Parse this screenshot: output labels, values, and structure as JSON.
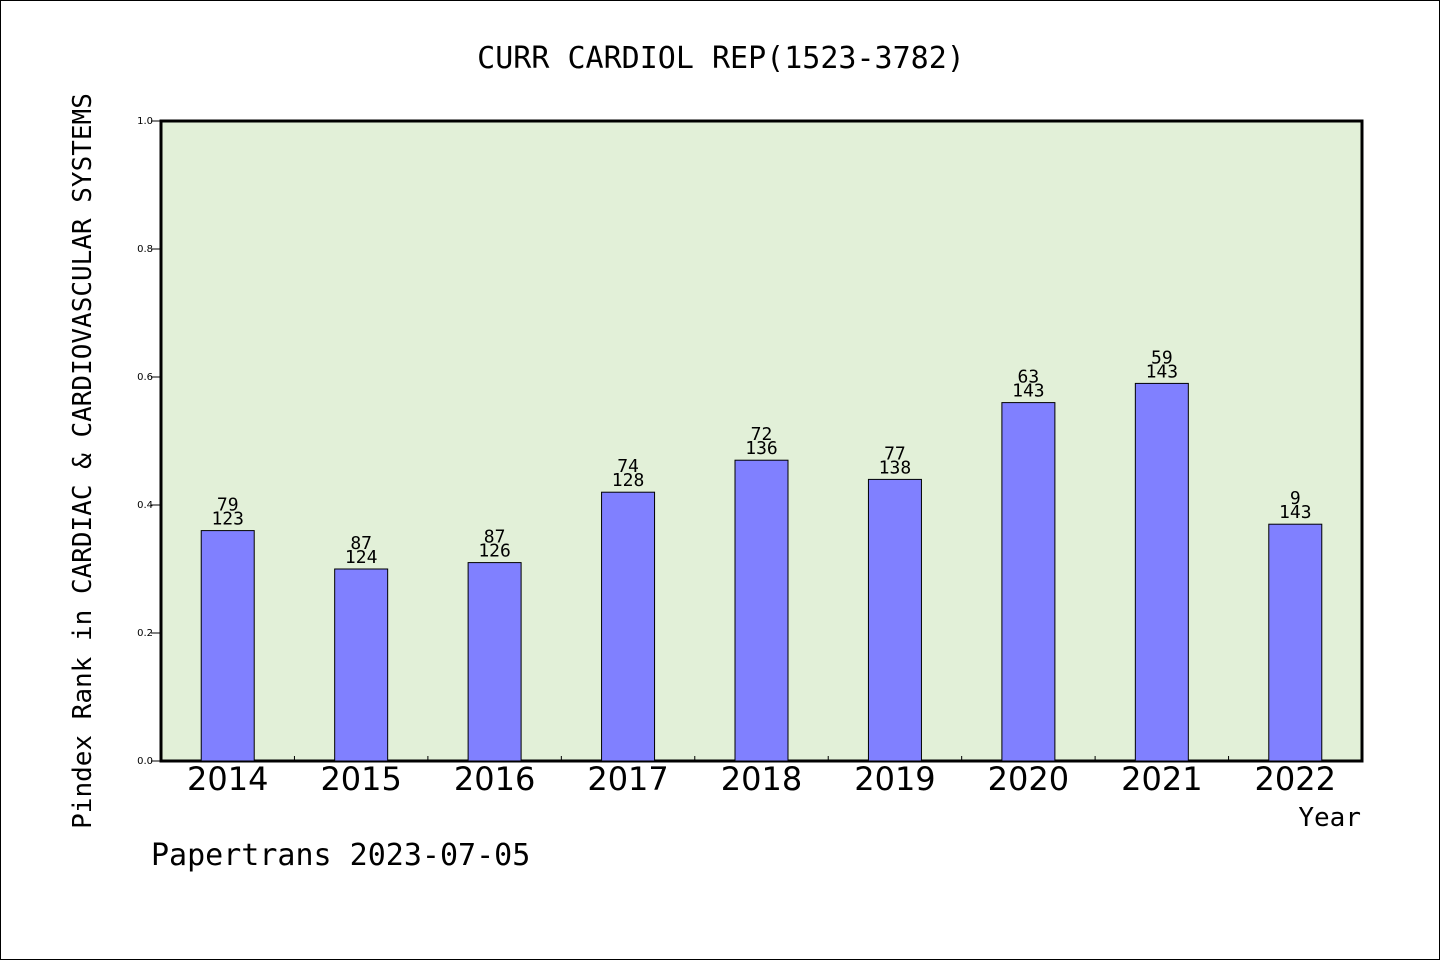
{
  "chart_data": {
    "type": "bar",
    "title": "CURR CARDIOL REP(1523-3782)",
    "xlabel": "Year",
    "ylabel": "Pindex Rank in CARDIAC & CARDIOVASCULAR SYSTEMS",
    "footer": "Papertrans 2023-07-05",
    "categories": [
      "2014",
      "2015",
      "2016",
      "2017",
      "2018",
      "2019",
      "2020",
      "2021",
      "2022"
    ],
    "values": [
      0.36,
      0.3,
      0.31,
      0.42,
      0.47,
      0.44,
      0.56,
      0.59,
      0.37
    ],
    "labels_top": [
      "79",
      "87",
      "87",
      "74",
      "72",
      "77",
      "63",
      "59",
      "9"
    ],
    "labels_bottom": [
      "123",
      "124",
      "126",
      "128",
      "136",
      "138",
      "143",
      "143",
      "143"
    ],
    "ylim": [
      0,
      1.0
    ],
    "yticks": [
      "0.0",
      "0.2",
      "0.4",
      "0.6",
      "0.8",
      "1.0"
    ],
    "grid": false,
    "colors": {
      "bar": "#8080ff",
      "plot_bg": "#e2f0d8"
    }
  }
}
